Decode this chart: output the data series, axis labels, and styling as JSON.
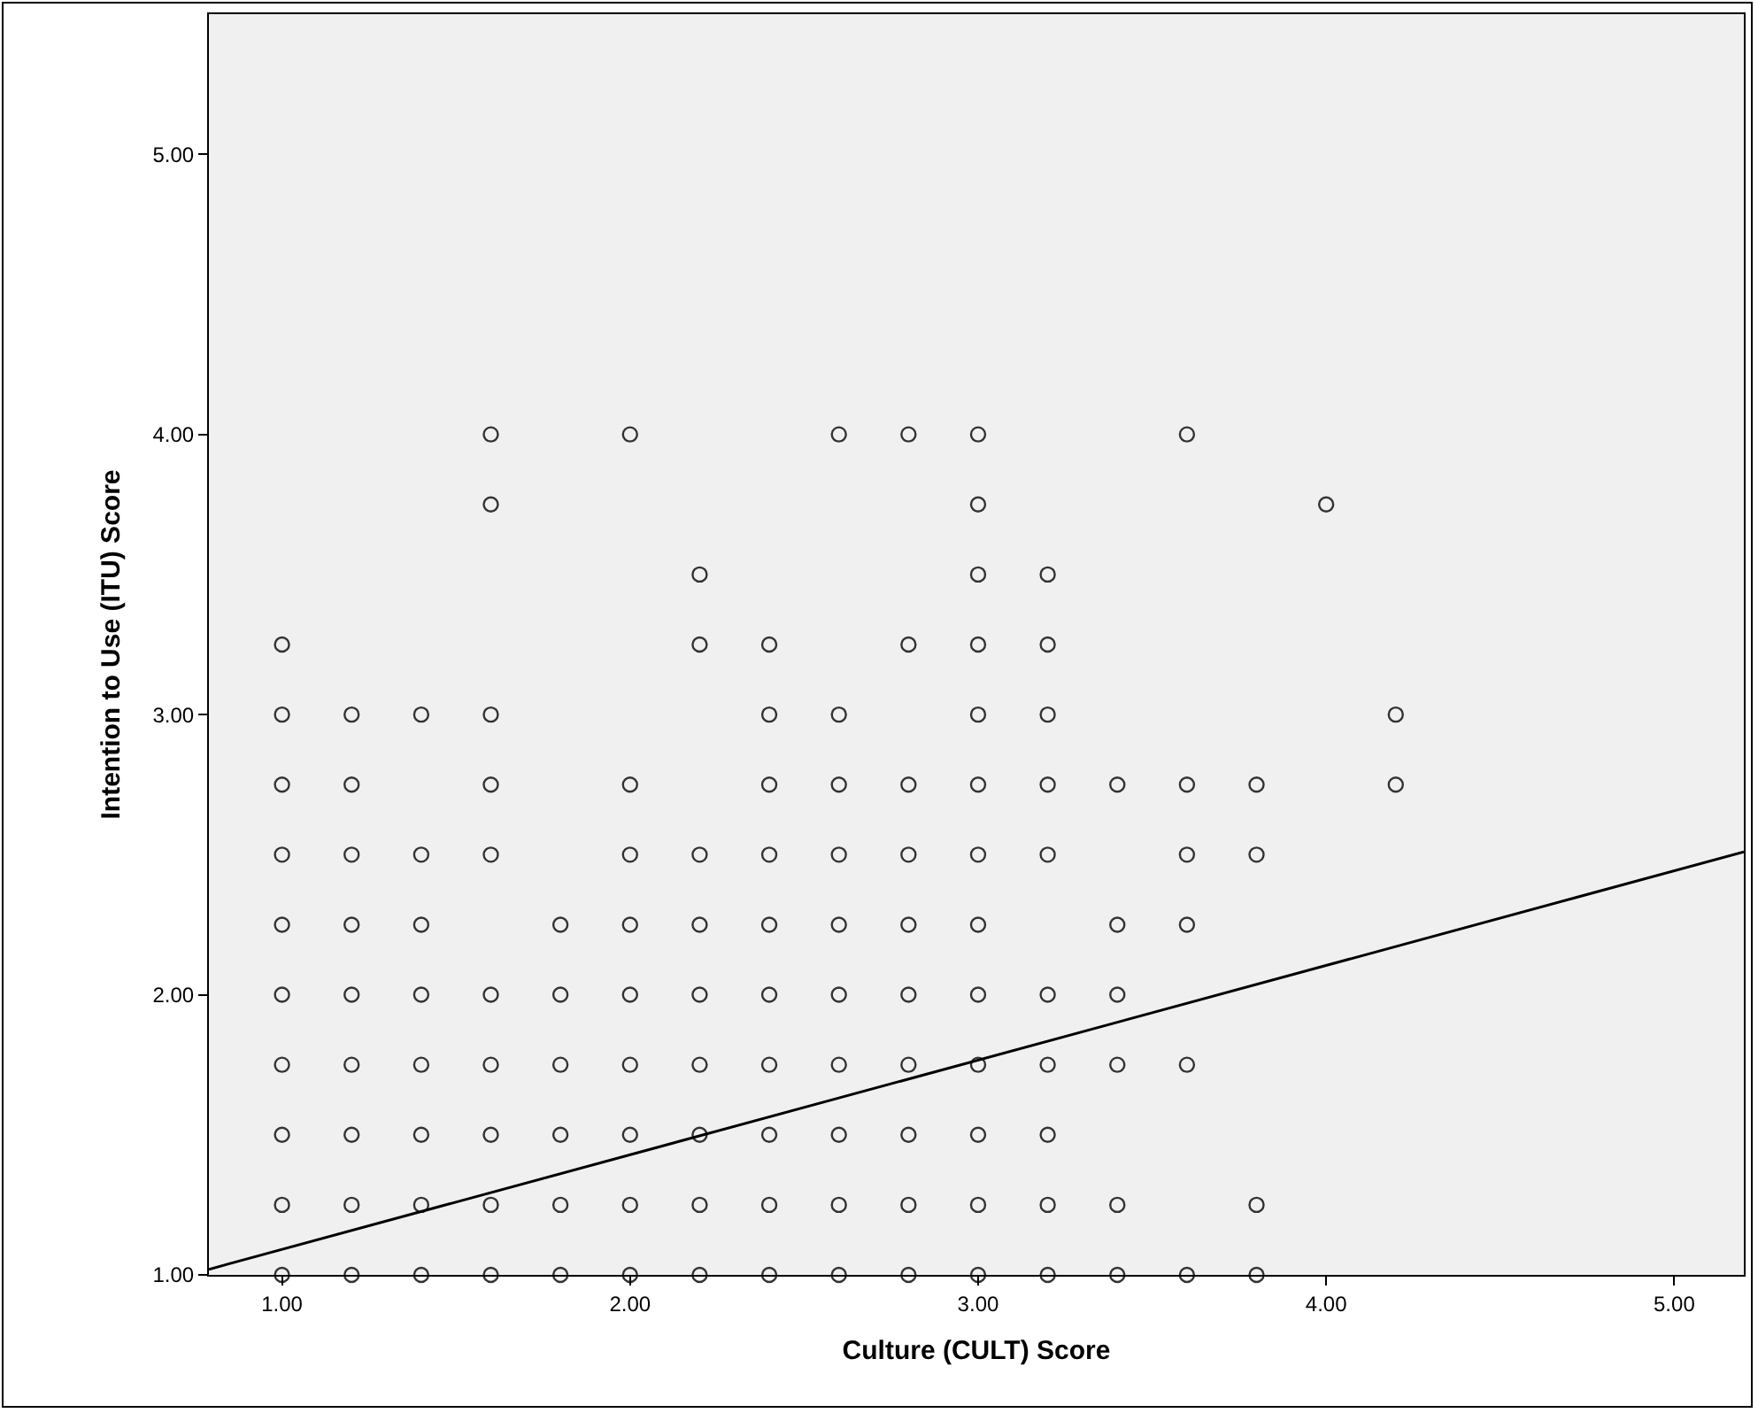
{
  "chart_data": {
    "type": "scatter",
    "xlabel": "Culture (CULT) Score",
    "ylabel": "Intention to Use (ITU) Score",
    "xlim": [
      0.79,
      5.2
    ],
    "ylim": [
      1,
      5.5
    ],
    "xticks": [
      {
        "value": 1,
        "label": "1.00"
      },
      {
        "value": 2,
        "label": "2.00"
      },
      {
        "value": 3,
        "label": "3.00"
      },
      {
        "value": 4,
        "label": "4.00"
      },
      {
        "value": 5,
        "label": "5.00"
      }
    ],
    "yticks": [
      {
        "value": 1,
        "label": "1.00"
      },
      {
        "value": 2,
        "label": "2.00"
      },
      {
        "value": 3,
        "label": "3.00"
      },
      {
        "value": 4,
        "label": "4.00"
      },
      {
        "value": 5,
        "label": "5.00"
      }
    ],
    "grid": false,
    "marker": "circle",
    "series": [
      {
        "color": "#333333",
        "x": [
          1,
          1,
          1,
          1,
          1,
          1,
          1,
          1,
          1,
          1,
          1.2,
          1.2,
          1.2,
          1.2,
          1.2,
          1.2,
          1.2,
          1.2,
          1.2,
          1.4,
          1.4,
          1.4,
          1.4,
          1.4,
          1.4,
          1.4,
          1.4,
          1.6,
          1.6,
          1.6,
          1.6,
          1.6,
          1.6,
          1.6,
          1.6,
          1.6,
          1.6,
          1.8,
          1.8,
          1.8,
          1.8,
          1.8,
          1.8,
          2,
          2,
          2,
          2,
          2,
          2,
          2,
          2,
          2,
          2.2,
          2.2,
          2.2,
          2.2,
          2.2,
          2.2,
          2.2,
          2.2,
          2.2,
          2.4,
          2.4,
          2.4,
          2.4,
          2.4,
          2.4,
          2.4,
          2.4,
          2.4,
          2.4,
          2.6,
          2.6,
          2.6,
          2.6,
          2.6,
          2.6,
          2.6,
          2.6,
          2.6,
          2.6,
          2.8,
          2.8,
          2.8,
          2.8,
          2.8,
          2.8,
          2.8,
          2.8,
          2.8,
          2.8,
          3,
          3,
          3,
          3,
          3,
          3,
          3,
          3,
          3,
          3,
          3,
          3,
          3,
          3.2,
          3.2,
          3.2,
          3.2,
          3.2,
          3.2,
          3.2,
          3.2,
          3.2,
          3.2,
          3.4,
          3.4,
          3.4,
          3.4,
          3.4,
          3.4,
          3.6,
          3.6,
          3.6,
          3.6,
          3.6,
          3.6,
          3.8,
          3.8,
          3.8,
          3.8,
          4,
          4.2,
          4.2
        ],
        "values": [
          3.25,
          3,
          2.75,
          2.5,
          2.25,
          2,
          1.75,
          1.5,
          1.25,
          1,
          3,
          2.75,
          2.5,
          2.25,
          2,
          1.75,
          1.5,
          1.25,
          1,
          3,
          2.5,
          2.25,
          2,
          1.75,
          1.5,
          1.25,
          1,
          4,
          3.75,
          3,
          2.75,
          2.5,
          2,
          1.75,
          1.5,
          1.25,
          1,
          2.25,
          2,
          1.75,
          1.5,
          1.25,
          1,
          4,
          2.75,
          2.5,
          2.25,
          2,
          1.75,
          1.5,
          1.25,
          1,
          3.5,
          3.25,
          2.5,
          2.25,
          2,
          1.75,
          1.5,
          1.25,
          1,
          3.25,
          3,
          2.75,
          2.5,
          2.25,
          2,
          1.75,
          1.5,
          1.25,
          1,
          4,
          3,
          2.75,
          2.5,
          2.25,
          2,
          1.75,
          1.5,
          1.25,
          1,
          4,
          3.25,
          2.75,
          2.5,
          2.25,
          2,
          1.75,
          1.5,
          1.25,
          1,
          4,
          3.75,
          3.5,
          3.25,
          3,
          2.75,
          2.5,
          2.25,
          2,
          1.75,
          1.5,
          1.25,
          1,
          3.5,
          3.25,
          3,
          2.75,
          2.5,
          2,
          1.75,
          1.5,
          1.25,
          1,
          2.75,
          2.25,
          2,
          1.75,
          1.25,
          1,
          4,
          2.75,
          2.5,
          2.25,
          1.75,
          1,
          2.75,
          2.5,
          1.25,
          1,
          3.75,
          3,
          2.75
        ]
      },
      {
        "type": "line",
        "marker": "none",
        "color": "#000000",
        "x": [
          0.79,
          5.2
        ],
        "values": [
          1.02,
          2.51
        ]
      }
    ]
  }
}
